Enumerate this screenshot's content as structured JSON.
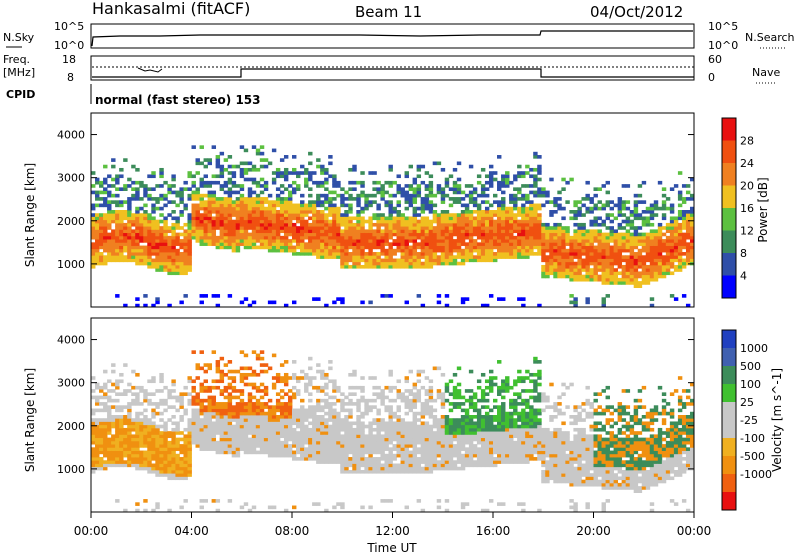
{
  "header": {
    "station": "Hankasalmi (fitACF)",
    "beam": "Beam 11",
    "date": "04/Oct/2012"
  },
  "status_panel": {
    "nsky_label": "N.Sky",
    "nsky_ticks": [
      "10^5",
      "10^0"
    ],
    "nsearch_label": "N.Search",
    "nsearch_ticks": [
      "10^5",
      "10^0"
    ],
    "freq_label_1": "Freq.",
    "freq_label_2": "[MHz]",
    "freq_ticks": [
      "18",
      "8"
    ],
    "nave_label": "Nave",
    "nave_ticks": [
      "60",
      "0"
    ],
    "cpid_label": "CPID",
    "cpid_text": "normal (fast stereo) 153"
  },
  "colors": {
    "power_scale": [
      "#0000ff",
      "#2f4fa8",
      "#3c8c5a",
      "#5cc040",
      "#f0c020",
      "#f08020",
      "#f05010",
      "#e81010"
    ],
    "velocity_scale": [
      "#e81010",
      "#f06010",
      "#f09010",
      "#f0b020",
      "#c8c8c8",
      "#c8c8c8",
      "#40c030",
      "#3c8c5a",
      "#4060b0",
      "#2040c0"
    ],
    "ground_scatter": "#c8c8c8"
  },
  "chart_data": [
    {
      "type": "heatmap",
      "name": "power",
      "ylabel": "Slant Range [km]",
      "yticks": [
        "4000",
        "3000",
        "2000",
        "1000"
      ],
      "ylim": [
        0,
        4500
      ],
      "colorbar_label": "Power [dB]",
      "colorbar_ticks": [
        "28",
        "24",
        "20",
        "16",
        "12",
        "8",
        "4"
      ],
      "colorbar_range": [
        0,
        32
      ],
      "x_range_hours": [
        0,
        24
      ]
    },
    {
      "type": "heatmap",
      "name": "velocity",
      "ylabel": "Slant Range [km]",
      "yticks": [
        "4000",
        "3000",
        "2000",
        "1000"
      ],
      "ylim": [
        0,
        4500
      ],
      "colorbar_label": "Velocity [m s^-1]",
      "colorbar_ticks": [
        "1000",
        "500",
        "100",
        "25",
        "-25",
        "-100",
        "-500",
        "-1000"
      ],
      "x_range_hours": [
        0,
        24
      ]
    }
  ],
  "xaxis": {
    "label": "Time UT",
    "ticks": [
      "00:00",
      "04:00",
      "08:00",
      "12:00",
      "16:00",
      "20:00",
      "00:00"
    ]
  }
}
